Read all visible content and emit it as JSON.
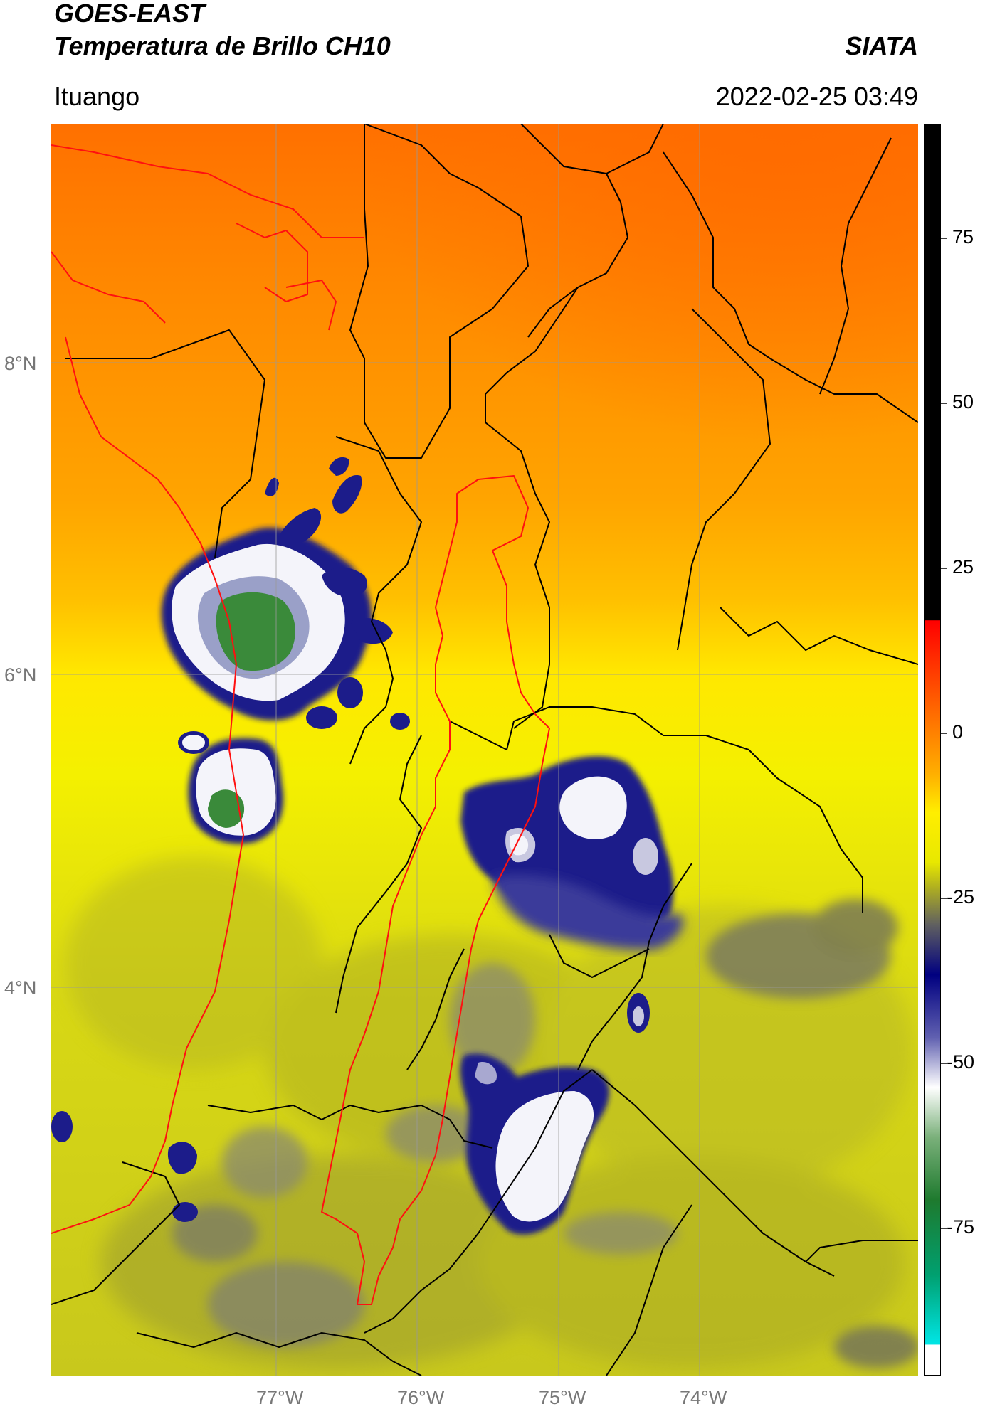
{
  "header": {
    "title_line1": "GOES-EAST",
    "title_line2": "Temperatura de Brillo CH10",
    "organization": "SIATA",
    "location": "Ituango",
    "timestamp": "2022-02-25 03:49"
  },
  "map": {
    "lon_ticks": [
      "77°W",
      "76°W",
      "75°W",
      "74°W"
    ],
    "lat_ticks": [
      "8°N",
      "6°N",
      "4°N"
    ],
    "colors": {
      "warm_north": "#ff7300",
      "orange": "#ff9a00",
      "yellow": "#f5f000",
      "olive": "#c8c81c",
      "grey_cloud": "#707060",
      "navy_cloud": "#1c1c8a",
      "white_core": "#f4f4fa",
      "green_core": "#3a8a3a",
      "borders": "#000000",
      "basin_outline": "#ff1010"
    }
  },
  "colorbar": {
    "tick_labels": [
      "75",
      "50",
      "25",
      "0",
      "-25",
      "-50",
      "-75"
    ],
    "colors": [
      "#000000",
      "#ff0000",
      "#ff8c00",
      "#ffff00",
      "#808020",
      "#000080",
      "#ffffff",
      "#228b22",
      "#00e5e5",
      "#ffffff"
    ]
  }
}
